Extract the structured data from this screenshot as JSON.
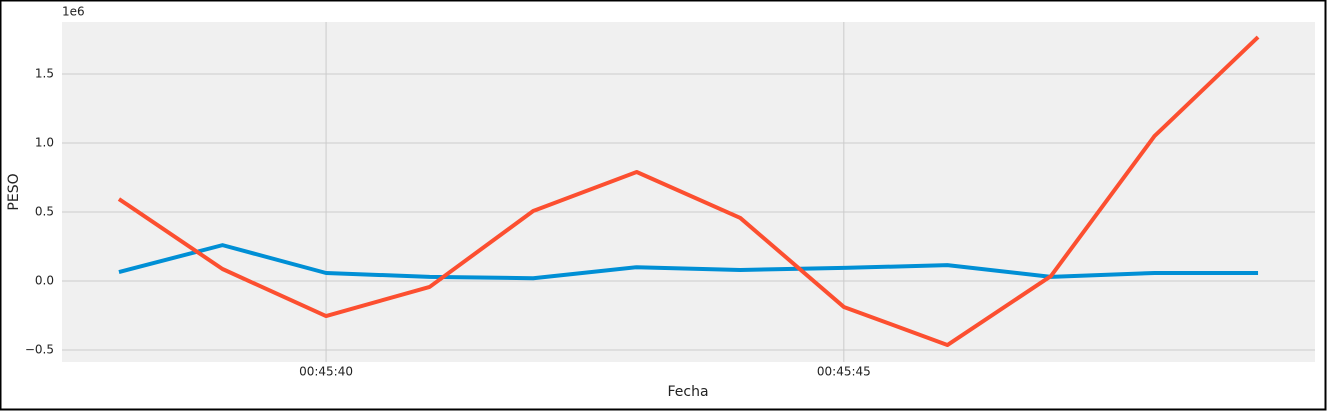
{
  "chart_data": {
    "type": "line",
    "x": [
      "00:45:38",
      "00:45:39",
      "00:45:40",
      "00:45:41",
      "00:45:42",
      "00:45:43",
      "00:45:44",
      "00:45:45",
      "00:45:46",
      "00:45:47",
      "00:45:48",
      "00:45:49"
    ],
    "series": [
      {
        "color": "#008fd5",
        "values": [
          0.065,
          0.26,
          0.058,
          0.03,
          0.02,
          0.1,
          0.08,
          0.095,
          0.115,
          0.03,
          0.058,
          0.058
        ]
      },
      {
        "color": "#fc4f30",
        "values": [
          0.594,
          0.087,
          -0.254,
          -0.043,
          0.507,
          0.79,
          0.457,
          -0.188,
          -0.464,
          0.036,
          1.05,
          1.768
        ]
      }
    ],
    "x_label": "Fecha",
    "y_label": "PESO",
    "y_offset_label": "1e6",
    "xlim": [
      "00:45:37.45",
      "00:45:49.55"
    ],
    "xticks": [
      "00:45:40",
      "00:45:45"
    ],
    "ylim": [
      -0.587,
      1.877
    ],
    "yticks": [
      {
        "value": -0.5,
        "label": "−0.5"
      },
      {
        "value": 0,
        "label": "0.0"
      },
      {
        "value": 0.5,
        "label": "0.5"
      },
      {
        "value": 1,
        "label": "1.0"
      },
      {
        "value": 1.5,
        "label": "1.5"
      }
    ],
    "grid": true
  }
}
